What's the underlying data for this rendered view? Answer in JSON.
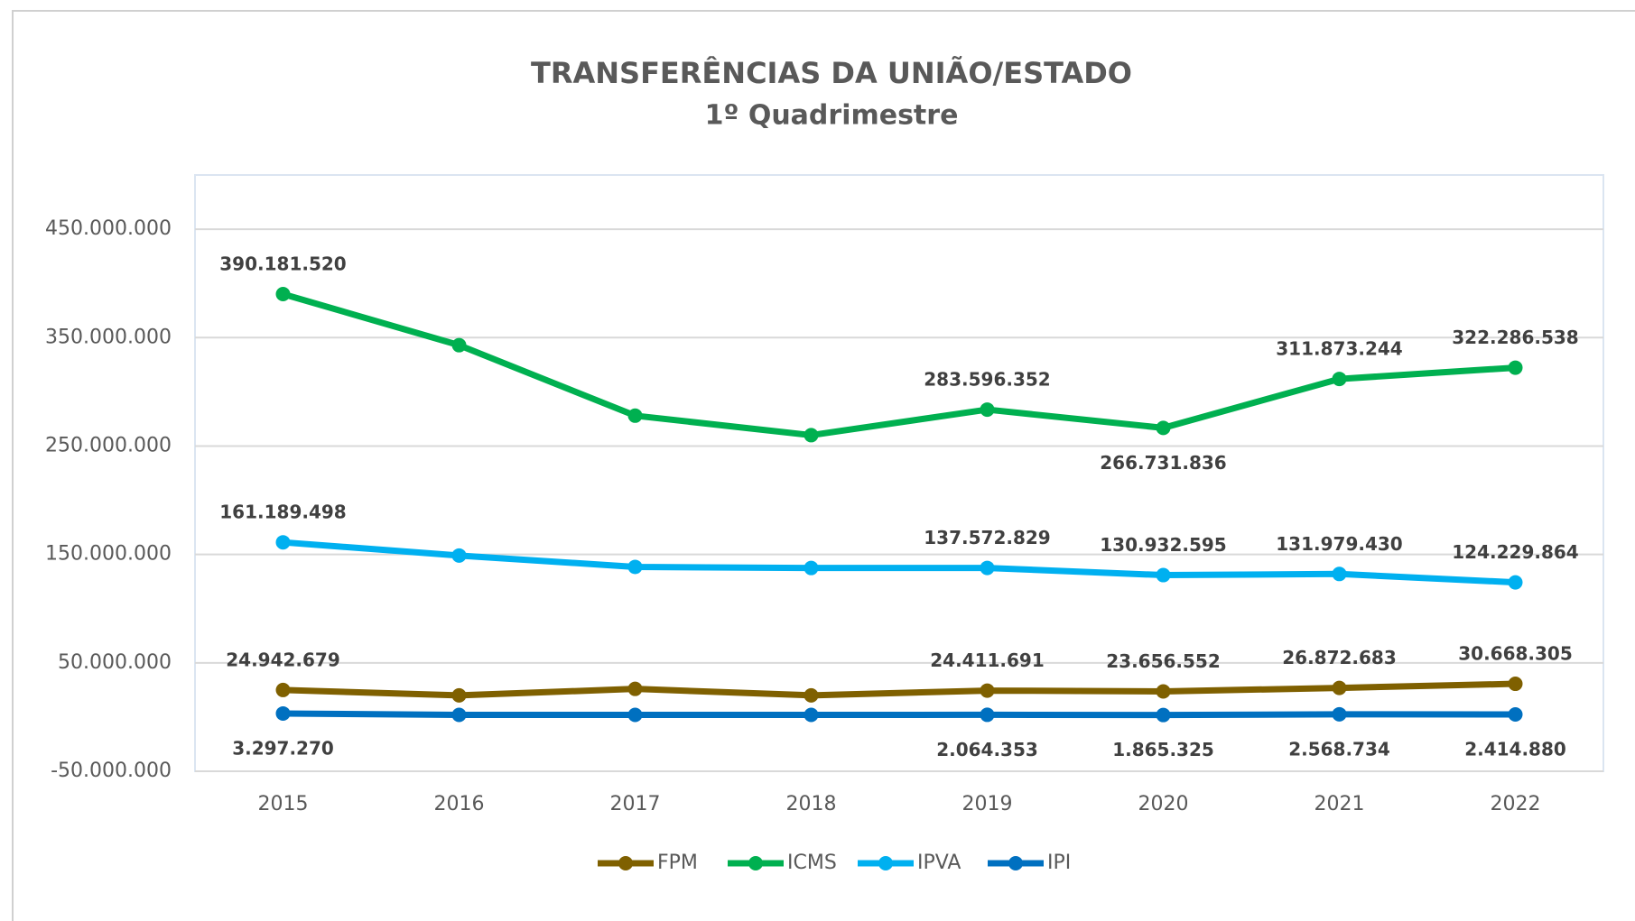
{
  "chart_data": {
    "type": "line",
    "title": "TRANSFERÊNCIAS DA UNIÃO/ESTADO",
    "subtitle": "1º Quadrimestre",
    "categories": [
      "2015",
      "2016",
      "2017",
      "2018",
      "2019",
      "2020",
      "2021",
      "2022"
    ],
    "ylim": [
      -50000000,
      500000000
    ],
    "yticks": [
      {
        "value": -50000000,
        "label": "-50.000.000"
      },
      {
        "value": 50000000,
        "label": "50.000.000"
      },
      {
        "value": 150000000,
        "label": "150.000.000"
      },
      {
        "value": 250000000,
        "label": "250.000.000"
      },
      {
        "value": 350000000,
        "label": "350.000.000"
      },
      {
        "value": 450000000,
        "label": "450.000.000"
      }
    ],
    "grid": true,
    "legend": "bottom",
    "series": [
      {
        "name": "FPM",
        "color": "#7f6000",
        "values": [
          24942679,
          20000000,
          26000000,
          20000000,
          24411691,
          23656552,
          26872683,
          30668305
        ],
        "value_labels": [
          "24.942.679",
          null,
          null,
          null,
          "24.411.691",
          "23.656.552",
          "26.872.683",
          "30.668.305"
        ]
      },
      {
        "name": "ICMS",
        "color": "#00b050",
        "values": [
          390181520,
          343000000,
          278000000,
          260000000,
          283596352,
          266731836,
          311873244,
          322286538
        ],
        "value_labels": [
          "390.181.520",
          null,
          null,
          null,
          "283.596.352",
          "266.731.836",
          "311.873.244",
          "322.286.538"
        ]
      },
      {
        "name": "IPVA",
        "color": "#00b0f0",
        "values": [
          161189498,
          149000000,
          138500000,
          137500000,
          137572829,
          130932595,
          131979430,
          124229864
        ],
        "value_labels": [
          "161.189.498",
          null,
          null,
          null,
          "137.572.829",
          "130.932.595",
          "131.979.430",
          "124.229.864"
        ]
      },
      {
        "name": "IPI",
        "color": "#0070c0",
        "values": [
          3297270,
          2000000,
          2000000,
          2000000,
          2064353,
          1865325,
          2568734,
          2414880
        ],
        "value_labels": [
          "3.297.270",
          null,
          null,
          null,
          "2.064.353",
          "1.865.325",
          "2.568.734",
          "2.414.880"
        ]
      }
    ]
  }
}
